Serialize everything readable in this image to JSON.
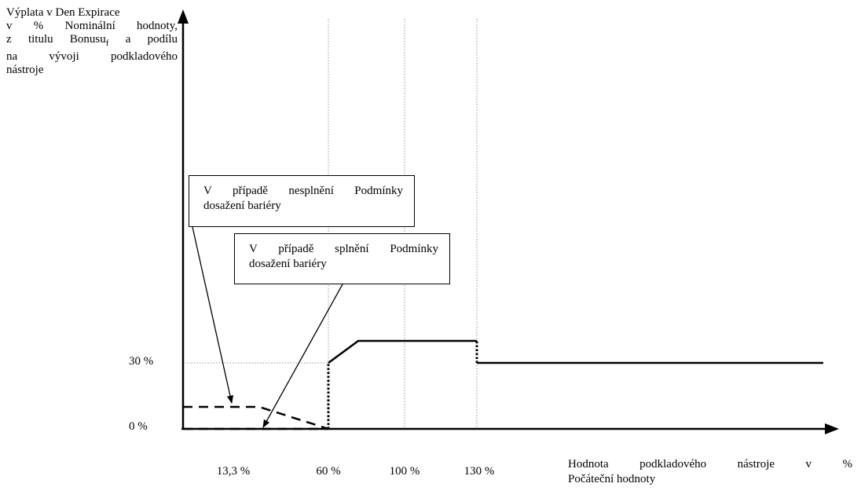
{
  "y_axis_label": {
    "lines": [
      "Výplata v Den Expirace",
      "v % Nominální hodnoty,",
      "z titulu Bonusu",
      "a podílu",
      "na vývoji podkladového",
      "nástroje"
    ],
    "bonus_subscript": "f"
  },
  "x_axis_label": {
    "lines": [
      "Hodnota podkladového nástroje v %",
      "Počáteční hodnoty"
    ]
  },
  "callouts": {
    "not_met": {
      "lines": [
        "V případě nesplnění Podmínky",
        "dosažení bariéry"
      ]
    },
    "met": {
      "lines": [
        "V případě splnění Podmínky",
        "dosažení bariéry"
      ]
    }
  },
  "chart_data": {
    "type": "line",
    "y_ticks": [
      "30 %",
      "0 %"
    ],
    "x_ticks": [
      "13,3 %",
      "60 %",
      "100 %",
      "130 %"
    ],
    "series": [
      {
        "style": "solid",
        "points": [
          [
            60,
            30
          ],
          [
            75,
            40
          ],
          [
            130,
            40
          ]
        ]
      },
      {
        "style": "solid",
        "points": [
          [
            130,
            30
          ],
          [
            320,
            30
          ]
        ]
      },
      {
        "style": "dotted",
        "points": [
          [
            60,
            0
          ],
          [
            60,
            30
          ]
        ]
      },
      {
        "style": "dotted",
        "points": [
          [
            130,
            30
          ],
          [
            130,
            40
          ]
        ]
      },
      {
        "style": "dashed",
        "points": [
          [
            -13,
            10
          ],
          [
            25,
            10
          ],
          [
            60,
            0
          ]
        ]
      },
      {
        "style": "dashed",
        "points": [
          [
            -13,
            0
          ],
          [
            60,
            0
          ]
        ]
      }
    ],
    "reference_lines": {
      "vertical": [
        60,
        100,
        130
      ],
      "horizontal": [
        30
      ]
    }
  }
}
